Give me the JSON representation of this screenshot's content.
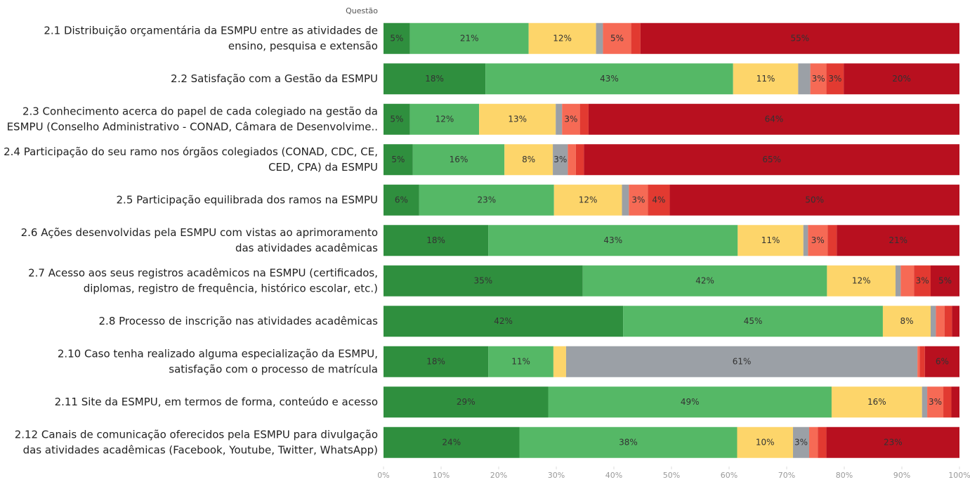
{
  "chart_data": {
    "type": "stacked_barh",
    "axis_header": "Questão",
    "categories": [
      [
        "2.1 Distribuição orçamentária da ESMPU entre as atividades de",
        "ensino, pesquisa e extensão"
      ],
      [
        "2.2 Satisfação com a Gestão da ESMPU"
      ],
      [
        "2.3 Conhecimento acerca do papel de cada colegiado na gestão da",
        "ESMPU (Conselho Administrativo - CONAD, Câmara de Desenvolvime.."
      ],
      [
        "2.4 Participação do seu ramo nos órgãos colegiados (CONAD, CDC, CE,",
        "CED, CPA) da ESMPU"
      ],
      [
        "2.5 Participação equilibrada dos ramos na ESMPU"
      ],
      [
        "2.6 Ações desenvolvidas pela ESMPU com vistas ao aprimoramento",
        "das atividades acadêmicas"
      ],
      [
        "2.7 Acesso aos seus registros acadêmicos na ESMPU (certificados,",
        "diplomas, registro de frequência, histórico escolar, etc.)"
      ],
      [
        "2.8 Processo de inscrição nas atividades acadêmicas"
      ],
      [
        "2.10 Caso tenha realizado alguma especialização da ESMPU,",
        "satisfação com o processo de matrícula"
      ],
      [
        "2.11 Site da ESMPU, em termos de forma, conteúdo e acesso"
      ],
      [
        "2.12 Canais de comunicação oferecidos pela ESMPU para divulgação",
        "das atividades acadêmicas (Facebook, Youtube, Twitter, WhatsApp)"
      ]
    ],
    "series": [
      {
        "color": "#2f8f3e",
        "values": [
          4.6,
          17.7,
          4.6,
          5.1,
          6.2,
          18.2,
          34.6,
          41.6,
          18.2,
          28.6,
          23.6
        ],
        "value_labels": [
          "5%",
          "18%",
          "5%",
          "5%",
          "6%",
          "18%",
          "35%",
          "42%",
          "18%",
          "29%",
          "24%"
        ]
      },
      {
        "color": "#55b866",
        "values": [
          20.6,
          43.0,
          12.0,
          15.9,
          23.4,
          43.3,
          42.4,
          45.1,
          11.3,
          49.2,
          37.8
        ],
        "value_labels": [
          "21%",
          "43%",
          "12%",
          "16%",
          "23%",
          "43%",
          "42%",
          "45%",
          "11%",
          "49%",
          "38%"
        ]
      },
      {
        "color": "#fdd56a",
        "values": [
          11.7,
          11.3,
          13.3,
          8.4,
          11.8,
          11.4,
          11.9,
          8.3,
          2.2,
          15.7,
          9.7
        ],
        "value_labels": [
          "12%",
          "11%",
          "13%",
          "8%",
          "12%",
          "11%",
          "12%",
          "8%",
          null,
          "16%",
          "10%"
        ]
      },
      {
        "color": "#9ba0a6",
        "values": [
          1.2,
          2.1,
          1.1,
          2.6,
          1.2,
          0.8,
          0.9,
          0.9,
          61.0,
          0.9,
          2.8
        ],
        "value_labels": [
          null,
          null,
          null,
          "3%",
          null,
          null,
          null,
          null,
          "61%",
          null,
          "3%"
        ]
      },
      {
        "color": "#f66a55",
        "values": [
          4.9,
          2.8,
          3.1,
          1.4,
          3.3,
          3.4,
          2.3,
          1.5,
          0.4,
          2.8,
          1.5
        ],
        "value_labels": [
          "5%",
          "3%",
          "3%",
          null,
          "3%",
          "3%",
          null,
          null,
          null,
          "3%",
          null
        ]
      },
      {
        "color": "#e23a31",
        "values": [
          1.6,
          3.0,
          1.5,
          1.4,
          3.8,
          1.6,
          2.9,
          1.3,
          0.9,
          1.4,
          1.5
        ],
        "value_labels": [
          null,
          "3%",
          null,
          null,
          "4%",
          null,
          "3%",
          null,
          null,
          null,
          null
        ]
      },
      {
        "color": "#b8101f",
        "values": [
          55.4,
          20.1,
          64.4,
          65.2,
          50.3,
          21.3,
          5.0,
          1.3,
          6.0,
          1.4,
          23.1
        ],
        "value_labels": [
          "55%",
          "20%",
          "64%",
          "65%",
          "50%",
          "21%",
          "5%",
          null,
          "6%",
          null,
          "23%"
        ]
      }
    ],
    "xlim": [
      0,
      100
    ],
    "xticks": [
      {
        "value": 0,
        "label": "0%"
      },
      {
        "value": 10,
        "label": "10%"
      },
      {
        "value": 20,
        "label": "20%"
      },
      {
        "value": 30,
        "label": "30%"
      },
      {
        "value": 40,
        "label": "40%"
      },
      {
        "value": 50,
        "label": "50%"
      },
      {
        "value": 60,
        "label": "60%"
      },
      {
        "value": 70,
        "label": "70%"
      },
      {
        "value": 80,
        "label": "80%"
      },
      {
        "value": 90,
        "label": "90%"
      },
      {
        "value": 100,
        "label": "100%"
      }
    ]
  }
}
